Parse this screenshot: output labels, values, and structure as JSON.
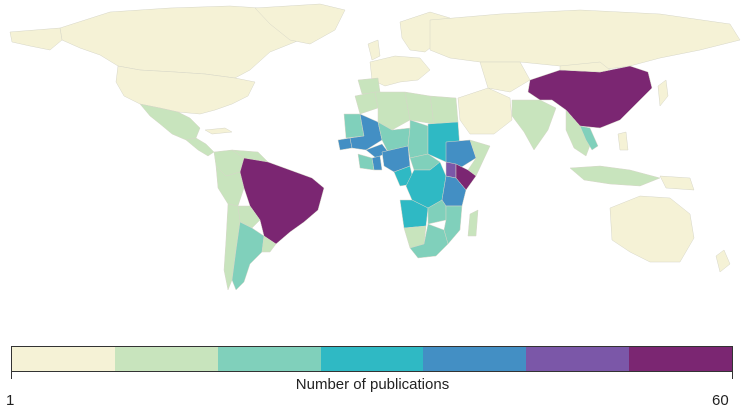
{
  "map": {
    "palette": [
      "#f5f2d6",
      "#c8e4bd",
      "#80d0bb",
      "#2fb9c4",
      "#438fc4",
      "#7b57a8",
      "#7b2672"
    ],
    "land_base_color": "#f5f2d6",
    "highlighted_countries": [
      {
        "name": "China",
        "level": 7
      },
      {
        "name": "Brazil",
        "level": 7
      },
      {
        "name": "Kenya",
        "level": 7
      },
      {
        "name": "Uganda",
        "level": 6
      },
      {
        "name": "Ethiopia",
        "level": 5
      },
      {
        "name": "Tanzania",
        "level": 5
      },
      {
        "name": "Mali",
        "level": 5
      },
      {
        "name": "Burkina Faso",
        "level": 5
      },
      {
        "name": "Nigeria",
        "level": 5
      },
      {
        "name": "Ghana",
        "level": 5
      },
      {
        "name": "Senegal",
        "level": 5
      },
      {
        "name": "Democratic Republic of the Congo",
        "level": 4
      },
      {
        "name": "Sudan",
        "level": 4
      },
      {
        "name": "Angola",
        "level": 4
      },
      {
        "name": "Cameroon",
        "level": 4
      },
      {
        "name": "Mozambique",
        "level": 3
      },
      {
        "name": "Zambia",
        "level": 3
      },
      {
        "name": "South Africa",
        "level": 3
      },
      {
        "name": "Argentina",
        "level": 3
      },
      {
        "name": "Chad",
        "level": 3
      },
      {
        "name": "Niger",
        "level": 3
      },
      {
        "name": "Algeria",
        "level": 2
      },
      {
        "name": "Libya",
        "level": 2
      },
      {
        "name": "Egypt",
        "level": 2
      },
      {
        "name": "India",
        "level": 2
      },
      {
        "name": "Mexico",
        "level": 2
      },
      {
        "name": "Colombia",
        "level": 2
      },
      {
        "name": "Peru",
        "level": 2
      },
      {
        "name": "Indonesia",
        "level": 2
      },
      {
        "name": "Thailand",
        "level": 2
      },
      {
        "name": "Vietnam",
        "level": 3
      }
    ]
  },
  "legend": {
    "title": "Number of publications",
    "min_label": "1",
    "max_label": "60"
  }
}
